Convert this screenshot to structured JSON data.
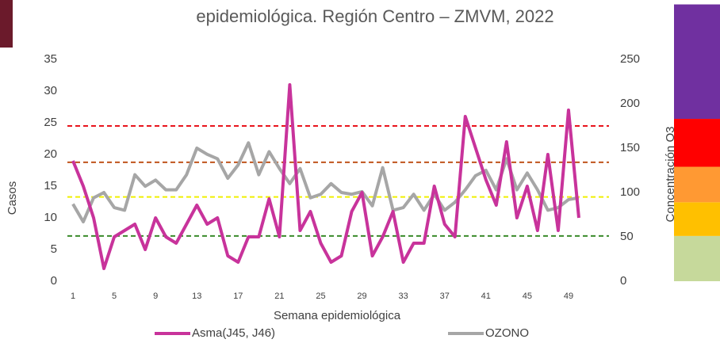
{
  "chart_data": {
    "type": "line",
    "title": "epidemiológica. Región Centro – ZMVM, 2022",
    "x_label": "Semana epidemiológica",
    "y_label": "Casos",
    "y2_label": "Concentración O3",
    "x": [
      1,
      2,
      3,
      4,
      5,
      6,
      7,
      8,
      9,
      10,
      11,
      12,
      13,
      14,
      15,
      16,
      17,
      18,
      19,
      20,
      21,
      22,
      23,
      24,
      25,
      26,
      27,
      28,
      29,
      30,
      31,
      32,
      33,
      34,
      35,
      36,
      37,
      38,
      39,
      40,
      41,
      42,
      43,
      44,
      45,
      46,
      47,
      48,
      49,
      50
    ],
    "xlim": [
      0.5,
      52.5
    ],
    "xticks": [
      1,
      5,
      9,
      13,
      17,
      21,
      25,
      29,
      33,
      37,
      41,
      45,
      49
    ],
    "ylim": [
      0,
      35
    ],
    "yticks": [
      0,
      5,
      10,
      15,
      20,
      25,
      30,
      35
    ],
    "y2lim": [
      0,
      250
    ],
    "y2ticks": [
      0,
      50,
      100,
      150,
      200,
      250
    ],
    "series": [
      {
        "name": "Asma(J45, J46)",
        "color": "#c8339b",
        "values": [
          19,
          15,
          10,
          2,
          7,
          8,
          9,
          5,
          10,
          7,
          6,
          9,
          12,
          9,
          10,
          4,
          3,
          7,
          7,
          13,
          7,
          31,
          8,
          11,
          6,
          3,
          4,
          11,
          14,
          4,
          7,
          11,
          3,
          6,
          6,
          15,
          9,
          7,
          26,
          21,
          16,
          12,
          22,
          10,
          15,
          8,
          20,
          8,
          27,
          10
        ]
      },
      {
        "name": "OZONO",
        "color": "#a6a6a6",
        "axis": "y2",
        "values": [
          87,
          67,
          94,
          100,
          83,
          80,
          120,
          107,
          114,
          103,
          103,
          120,
          150,
          143,
          138,
          116,
          131,
          156,
          120,
          146,
          127,
          110,
          127,
          94,
          98,
          110,
          100,
          98,
          101,
          85,
          128,
          80,
          83,
          98,
          80,
          98,
          80,
          89,
          103,
          119,
          125,
          103,
          138,
          103,
          122,
          103,
          80,
          83,
          92,
          94
        ]
      }
    ],
    "thresholds": [
      {
        "value": 175,
        "color": "#e8141c"
      },
      {
        "value": 134,
        "color": "#c0541c"
      },
      {
        "value": 95,
        "color": "#f0f000"
      },
      {
        "value": 51,
        "color": "#3a8a2a"
      }
    ],
    "scale_bands": [
      {
        "from": 0,
        "to": 51,
        "color": "#c6d99b"
      },
      {
        "from": 51,
        "to": 89,
        "color": "#ffc000"
      },
      {
        "from": 89,
        "to": 129,
        "color": "#ff9933"
      },
      {
        "from": 129,
        "to": 183,
        "color": "#ff0000"
      },
      {
        "from": 183,
        "to": 312,
        "color": "#7030a0"
      }
    ]
  }
}
